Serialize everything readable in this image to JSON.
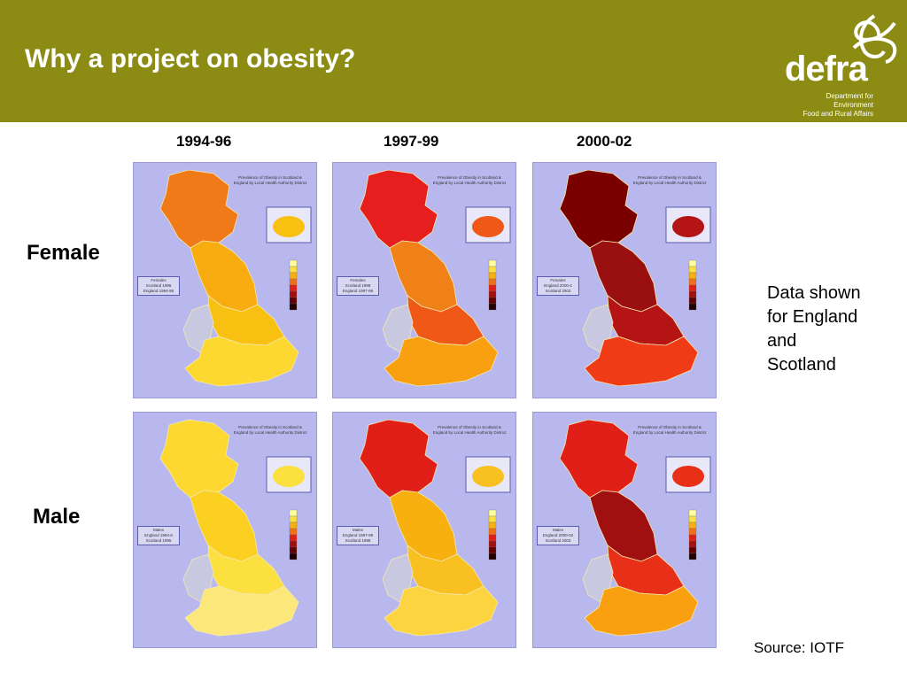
{
  "slide": {
    "title": "Why a project on obesity?",
    "logo": {
      "word": "defra",
      "line1": "Department for Environment",
      "line2": "Food and Rural Affairs"
    }
  },
  "columns": [
    "1994-96",
    "1997-99",
    "2000-02"
  ],
  "rows": [
    "Female",
    "Male"
  ],
  "note": {
    "line1": "Data shown",
    "line2": "for England",
    "line3": "and",
    "line4": "Scotland"
  },
  "source": "Source: IOTF",
  "map_title": "Prevalence of Obesity in Scotland & England by Local Health Authority District",
  "map_legends": {
    "f1": {
      "line1": "Females",
      "line2": "Scotland 1995",
      "line3": "England 1994-96"
    },
    "f2": {
      "line1": "Females",
      "line2": "Scotland 1998",
      "line3": "England 1997-99"
    },
    "f3": {
      "line1": "Females",
      "line2": "England 2000-2",
      "line3": "Scotland 2003"
    },
    "m1": {
      "line1": "Males",
      "line2": "England 1994-6",
      "line3": "Scotland 1995"
    },
    "m2": {
      "line1": "Males",
      "line2": "England 1997-99",
      "line3": "Scotland 1998"
    },
    "m3": {
      "line1": "Males",
      "line2": "England 2000-02",
      "line3": "Scotland 2003"
    }
  },
  "colors": {
    "header": "#8c8c14",
    "map_bg": "#b8b8ee"
  },
  "map_shading": {
    "f1": {
      "scotland": "#f07a18",
      "north": "#f8ac10",
      "midlands": "#f8c010",
      "south": "#fcd830",
      "wales": "#c8c8e0"
    },
    "f2": {
      "scotland": "#e61e1e",
      "north": "#f08018",
      "midlands": "#f05818",
      "south": "#f8a010",
      "wales": "#c8c8e0"
    },
    "f3": {
      "scotland": "#7a0000",
      "north": "#9a1010",
      "midlands": "#b41414",
      "south": "#f03c16",
      "wales": "#c8c8e0"
    },
    "m1": {
      "scotland": "#fcd830",
      "north": "#fcd020",
      "midlands": "#fce040",
      "south": "#fce87a",
      "wales": "#c8c8e0"
    },
    "m2": {
      "scotland": "#e02018",
      "north": "#f8b010",
      "midlands": "#f8c020",
      "south": "#fcd440",
      "wales": "#c8c8e0"
    },
    "m3": {
      "scotland": "#e02018",
      "north": "#a01010",
      "midlands": "#e83018",
      "south": "#f8a010",
      "wales": "#c8c8e0"
    }
  }
}
